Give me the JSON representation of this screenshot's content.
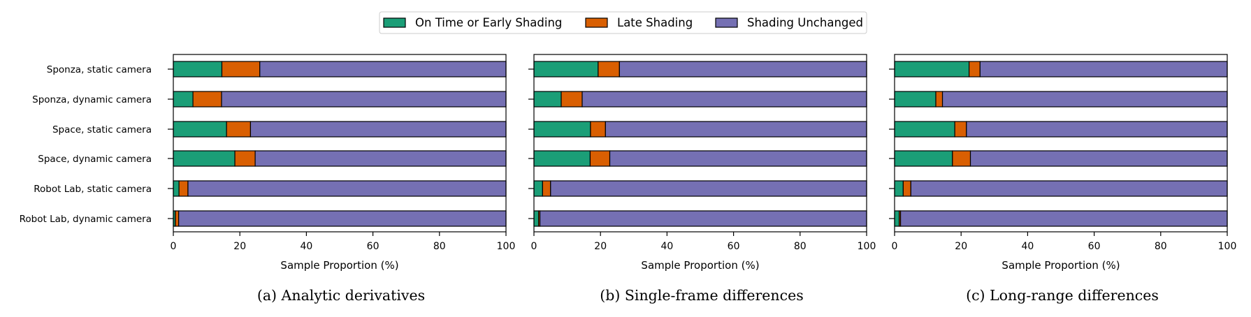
{
  "legend": {
    "items": [
      {
        "label": "On Time or Early Shading",
        "color": "#1b9e77"
      },
      {
        "label": "Late Shading",
        "color": "#d95f02"
      },
      {
        "label": "Shading Unchanged",
        "color": "#7570b3"
      }
    ]
  },
  "chart_data": [
    {
      "type": "bar",
      "orientation": "horizontal",
      "stacked": true,
      "caption": "(a)  Analytic derivatives",
      "xlabel": "Sample Proportion (%)",
      "xlim": [
        0,
        100
      ],
      "xticks": [
        0,
        20,
        40,
        60,
        80,
        100
      ],
      "categories": [
        "Sponza, static camera",
        "Sponza, dynamic camera",
        "Space, static camera",
        "Space, dynamic camera",
        "Robot Lab, static camera",
        "Robot Lab, dynamic camera"
      ],
      "series": [
        {
          "name": "On Time or Early Shading",
          "values": [
            14.6,
            5.9,
            16.0,
            18.5,
            1.7,
            0.6
          ]
        },
        {
          "name": "Late Shading",
          "values": [
            11.4,
            8.6,
            7.2,
            6.1,
            2.7,
            1.0
          ]
        },
        {
          "name": "Shading Unchanged",
          "values": [
            74.0,
            85.5,
            76.8,
            75.4,
            95.6,
            98.4
          ]
        }
      ]
    },
    {
      "type": "bar",
      "orientation": "horizontal",
      "stacked": true,
      "caption": "(b)  Single-frame differences",
      "xlabel": "Sample Proportion (%)",
      "xlim": [
        0,
        100
      ],
      "xticks": [
        0,
        20,
        40,
        60,
        80,
        100
      ],
      "categories": [
        "Sponza, static camera",
        "Sponza, dynamic camera",
        "Space, static camera",
        "Space, dynamic camera",
        "Robot Lab, static camera",
        "Robot Lab, dynamic camera"
      ],
      "series": [
        {
          "name": "On Time or Early Shading",
          "values": [
            19.3,
            8.2,
            17.0,
            16.9,
            2.6,
            1.4
          ]
        },
        {
          "name": "Late Shading",
          "values": [
            6.4,
            6.3,
            4.5,
            5.9,
            2.4,
            0.4
          ]
        },
        {
          "name": "Shading Unchanged",
          "values": [
            74.3,
            85.5,
            78.5,
            77.2,
            95.0,
            98.2
          ]
        }
      ]
    },
    {
      "type": "bar",
      "orientation": "horizontal",
      "stacked": true,
      "caption": "(c)  Long-range differences",
      "xlabel": "Sample Proportion (%)",
      "xlim": [
        0,
        100
      ],
      "xticks": [
        0,
        20,
        40,
        60,
        80,
        100
      ],
      "categories": [
        "Sponza, static camera",
        "Sponza, dynamic camera",
        "Space, static camera",
        "Space, dynamic camera",
        "Robot Lab, static camera",
        "Robot Lab, dynamic camera"
      ],
      "series": [
        {
          "name": "On Time or Early Shading",
          "values": [
            22.4,
            12.4,
            18.1,
            17.4,
            2.6,
            1.4
          ]
        },
        {
          "name": "Late Shading",
          "values": [
            3.3,
            2.0,
            3.5,
            5.4,
            2.3,
            0.4
          ]
        },
        {
          "name": "Shading Unchanged",
          "values": [
            74.3,
            85.6,
            78.4,
            77.2,
            95.1,
            98.2
          ]
        }
      ]
    }
  ]
}
